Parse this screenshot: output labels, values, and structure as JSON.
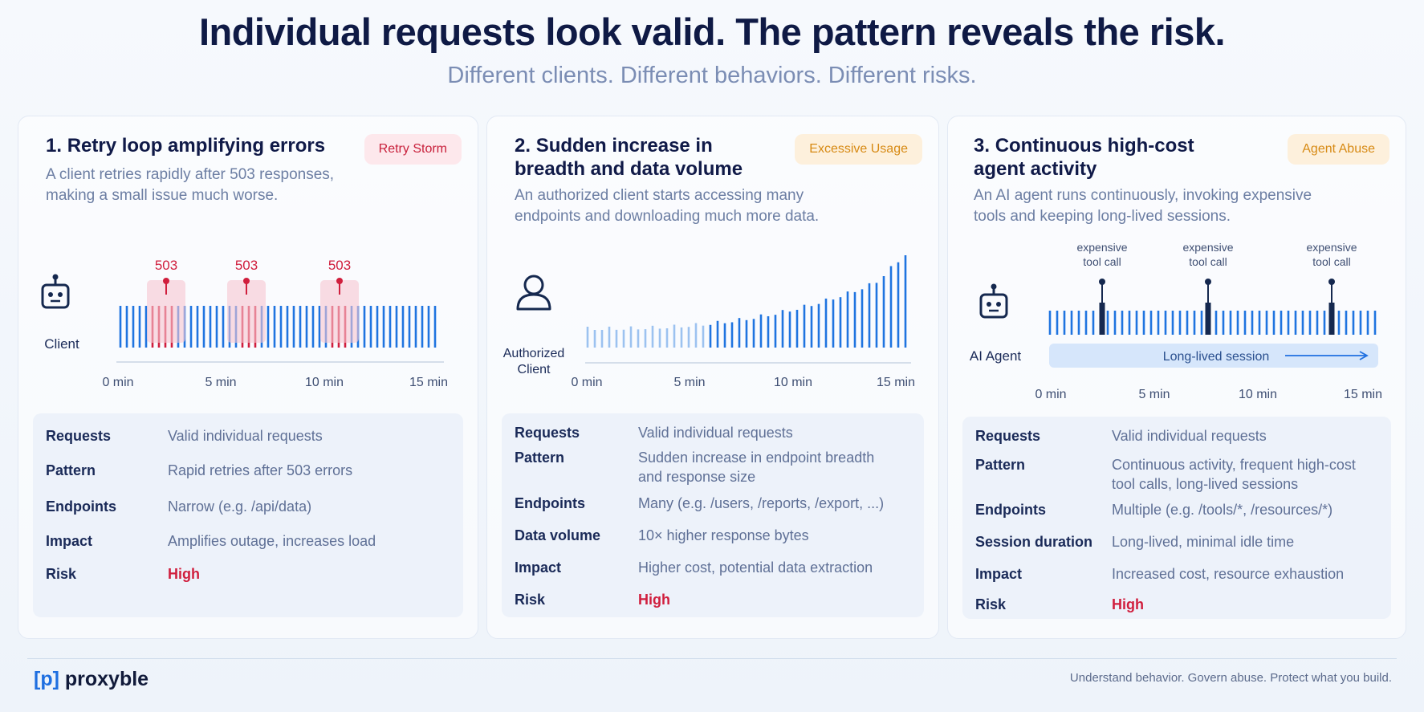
{
  "header": {
    "title": "Individual  requests look valid. The pattern reveals  the risk.",
    "subtitle": "Different clients. Different behaviors. Different risks."
  },
  "cards": [
    {
      "title_num": "1.",
      "title": "Retry loop amplifying errors",
      "badge": "Retry Storm",
      "description": "A client retries rapidly after 503 responses, making a small issue much worse.",
      "actor_label": "Client",
      "actor_icon": "robot-icon",
      "error_label": "503",
      "axis_ticks": [
        "0 min",
        "5 min",
        "10 min",
        "15 min"
      ],
      "rows": [
        {
          "key": "Requests",
          "value": "Valid individual requests"
        },
        {
          "key": "Pattern",
          "value": "Rapid retries after 503 errors"
        },
        {
          "key": "Endpoints",
          "value": "Narrow (e.g. /api/data)"
        },
        {
          "key": "Impact",
          "value": "Amplifies outage, increases load"
        },
        {
          "key": "Risk",
          "value": "High"
        }
      ]
    },
    {
      "title_num": "2.",
      "title": "Sudden increase in breadth and data volume",
      "badge": "Excessive Usage",
      "description": "An authorized client starts accessing many endpoints and downloading much more data.",
      "actor_label_1": "Authorized",
      "actor_label_2": "Client",
      "actor_icon": "user-icon",
      "axis_ticks": [
        "0 min",
        "5 min",
        "10 min",
        "15 min"
      ],
      "rows": [
        {
          "key": "Requests",
          "value": "Valid individual requests"
        },
        {
          "key": "Pattern",
          "value_1": "Sudden increase in endpoint breadth",
          "value_2": "and response size"
        },
        {
          "key": "Endpoints",
          "value": "Many (e.g. /users, /reports, /export, ...)"
        },
        {
          "key": "Data volume",
          "value": "10× higher response bytes"
        },
        {
          "key": "Impact",
          "value": "Higher cost, potential data extraction"
        },
        {
          "key": "Risk",
          "value": "High"
        }
      ]
    },
    {
      "title_num": "3.",
      "title": "Continuous high-cost agent activity",
      "badge": "Agent Abuse",
      "description": "An AI agent runs continuously, invoking expensive tools and keeping long-lived sessions.",
      "actor_label": "AI Agent",
      "actor_icon": "robot-icon",
      "marker_label_1": "expensive",
      "marker_label_2": "tool call",
      "session_label": "Long-lived session",
      "axis_ticks": [
        "0 min",
        "5 min",
        "10 min",
        "15 min"
      ],
      "rows": [
        {
          "key": "Requests",
          "value": "Valid individual requests"
        },
        {
          "key": "Pattern",
          "value_1": "Continuous activity, frequent high-cost",
          "value_2": "tool calls, long-lived sessions"
        },
        {
          "key": "Endpoints",
          "value": "Multiple (e.g. /tools/*, /resources/*)"
        },
        {
          "key": "Session duration",
          "value": "Long-lived, minimal idle time"
        },
        {
          "key": "Impact",
          "value": "Increased cost, resource exhaustion"
        },
        {
          "key": "Risk",
          "value": "High"
        }
      ]
    }
  ],
  "footer": {
    "logo_bracket": "[p]",
    "logo_name": "proxyble",
    "tagline": "Understand behavior. Govern abuse. Protect what you build."
  },
  "colors": {
    "bar_blue": "#1f74e0",
    "error_red": "#d01e3d",
    "navy": "#15284f",
    "accent_blue": "#1f6fe0"
  }
}
